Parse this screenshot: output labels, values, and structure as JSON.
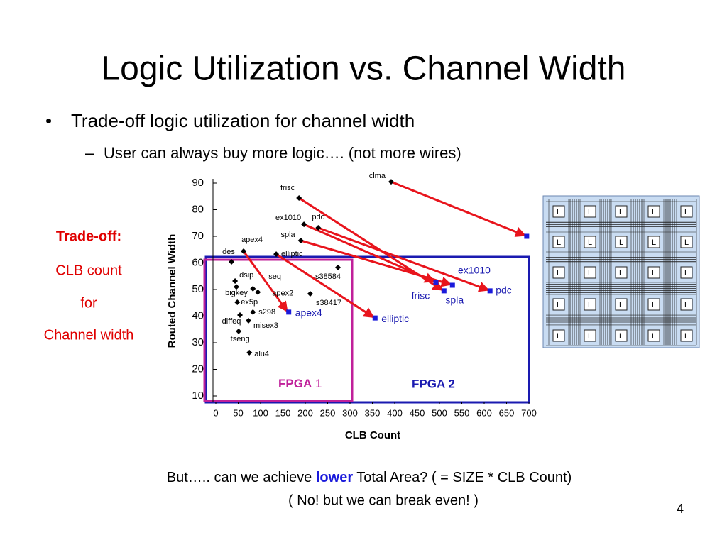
{
  "slide": {
    "title": "Logic Utilization vs. Channel Width",
    "bullet": "Trade-off logic utilization for channel width",
    "sub_bullet": "User can always buy more logic…. (not more wires)",
    "side": [
      "Trade-off:",
      "CLB count",
      "for",
      "Channel width"
    ],
    "footer_1": [
      "But…..  can we achieve ",
      "lower",
      " Total Area?  ( = SIZE * CLB Count)"
    ],
    "footer_2": "( No! but we can break even! )",
    "page_number": "4",
    "regions": [
      {
        "bold": "FPGA",
        "rest": " 1"
      },
      {
        "bold": "FPGA 2",
        "rest": ""
      }
    ],
    "diagram_cell": "L"
  },
  "chart_data": {
    "type": "scatter",
    "xlabel": "CLB Count",
    "ylabel": "Routed Channel Width",
    "xlim": [
      0,
      700
    ],
    "ylim": [
      10,
      90
    ],
    "xticks": [
      0,
      50,
      100,
      150,
      200,
      250,
      300,
      350,
      400,
      450,
      500,
      550,
      600,
      650,
      700
    ],
    "yticks": [
      10,
      20,
      30,
      40,
      50,
      60,
      70,
      80,
      90
    ],
    "arrow_color": "#e8141c",
    "series": [
      {
        "color": "#000000",
        "marker": "diamond",
        "labels": [
          "clma",
          "frisc",
          "ex1010",
          "pdc",
          "spla",
          "apex4",
          "elliptic",
          "des",
          "s38584",
          "dsip",
          "bigkey",
          "seq",
          "apex2",
          "s38417",
          "ex5p",
          "s298",
          "diffeq",
          "misex3",
          "tseng",
          "alu4"
        ],
        "x": [
          392,
          186,
          197,
          229,
          190,
          62,
          135,
          35,
          273,
          43,
          46,
          83,
          94,
          211,
          48,
          83,
          54,
          73,
          51,
          75
        ],
        "values": [
          90.5,
          84.4,
          74.5,
          73.2,
          68.4,
          64.4,
          63.3,
          60.4,
          58.3,
          53.2,
          51,
          50.3,
          49,
          48.4,
          45.2,
          41.5,
          40.4,
          38.3,
          34.3,
          26.3
        ]
      },
      {
        "color": "#1a1adb",
        "marker": "square",
        "labels": [
          null,
          "frisc",
          "ex1010",
          "pdc",
          "spla",
          "apex4",
          "elliptic",
          null,
          null,
          null,
          null,
          null,
          null,
          null,
          null,
          null,
          null,
          null,
          null,
          null
        ],
        "x": [
          695,
          510,
          492,
          613,
          529,
          163,
          356,
          null,
          null,
          null,
          null,
          null,
          null,
          null,
          null,
          null,
          null,
          null,
          null,
          null
        ],
        "values": [
          70,
          49.5,
          52.7,
          49.5,
          51.6,
          41.5,
          39.3,
          null,
          null,
          null,
          null,
          null,
          null,
          null,
          null,
          null,
          null,
          null,
          null,
          null
        ]
      }
    ]
  }
}
